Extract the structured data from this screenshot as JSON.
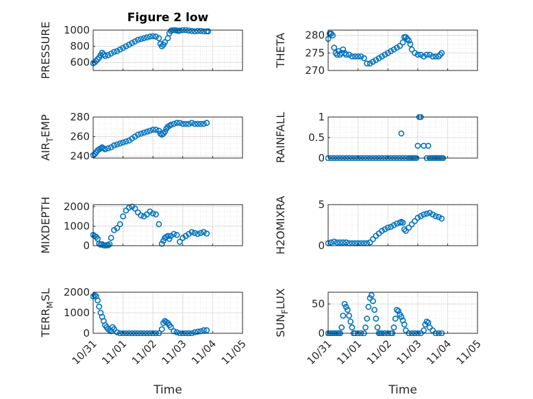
{
  "figure": {
    "title": "Figure 2 low",
    "x_axis_label": "Time",
    "x_tick_labels": [
      "10/31",
      "11/01",
      "11/02",
      "11/03",
      "11/04",
      "11/05"
    ],
    "marker_color": "#0072BD"
  },
  "chart_data": [
    {
      "type": "scatter",
      "ylabel": "PRESSURE",
      "xlim": [
        0,
        5
      ],
      "ylim": [
        500,
        1000
      ],
      "yticks": [
        600,
        800,
        1000
      ],
      "ytick_labels": [
        "600",
        "800",
        "1000"
      ],
      "grid": true,
      "series": [
        {
          "x": [
            0.0,
            0.05,
            0.1,
            0.15,
            0.2,
            0.25,
            0.3,
            0.35,
            0.4,
            0.5,
            0.6,
            0.7,
            0.8,
            0.9,
            1.0,
            1.1,
            1.2,
            1.3,
            1.4,
            1.5,
            1.6,
            1.7,
            1.8,
            1.9,
            2.0,
            2.1,
            2.2,
            2.25,
            2.3,
            2.35,
            2.4,
            2.5,
            2.55,
            2.6,
            2.65,
            2.7,
            2.75,
            2.8,
            2.85,
            2.9,
            3.0,
            3.1,
            3.2,
            3.3,
            3.4,
            3.5,
            3.6,
            3.7,
            3.8,
            3.85
          ],
          "y": [
            590,
            600,
            620,
            640,
            660,
            690,
            720,
            700,
            680,
            690,
            710,
            730,
            740,
            760,
            780,
            800,
            820,
            840,
            860,
            880,
            890,
            900,
            910,
            920,
            925,
            920,
            900,
            830,
            800,
            820,
            850,
            900,
            960,
            990,
            1000,
            1000,
            1000,
            995,
            990,
            995,
            1000,
            1000,
            995,
            990,
            985,
            990,
            990,
            985,
            985,
            985
          ]
        }
      ]
    },
    {
      "type": "scatter",
      "ylabel": "THETA",
      "xlim": [
        0,
        5
      ],
      "ylim": [
        270,
        281.5
      ],
      "yticks": [
        270,
        275,
        280
      ],
      "ytick_labels": [
        "270",
        "275",
        "280"
      ],
      "grid": true,
      "series": [
        {
          "x": [
            0.0,
            0.05,
            0.1,
            0.15,
            0.2,
            0.25,
            0.3,
            0.35,
            0.4,
            0.45,
            0.5,
            0.55,
            0.6,
            0.7,
            0.8,
            0.9,
            1.0,
            1.1,
            1.2,
            1.3,
            1.4,
            1.5,
            1.6,
            1.7,
            1.8,
            1.9,
            2.0,
            2.1,
            2.2,
            2.3,
            2.4,
            2.5,
            2.55,
            2.6,
            2.65,
            2.7,
            2.75,
            2.8,
            2.9,
            3.0,
            3.1,
            3.2,
            3.3,
            3.4,
            3.5,
            3.6,
            3.7,
            3.75,
            3.8
          ],
          "y": [
            279,
            280.5,
            280.5,
            280,
            276.5,
            275,
            274.5,
            275.5,
            274.5,
            275,
            276,
            275,
            274.5,
            274.5,
            274,
            274,
            274,
            274,
            273.5,
            272,
            272,
            272.5,
            273,
            273.5,
            274,
            274.5,
            275,
            275.5,
            276,
            276.5,
            277,
            278,
            279.5,
            279.5,
            279,
            278.5,
            277.5,
            276,
            275,
            274.5,
            274.5,
            274,
            274.5,
            274.5,
            274,
            274,
            274,
            274.5,
            275
          ]
        }
      ]
    },
    {
      "type": "scatter",
      "ylabel": "AIR_TEMP",
      "xlim": [
        0,
        5
      ],
      "ylim": [
        238,
        280
      ],
      "yticks": [
        240,
        260,
        280
      ],
      "ytick_labels": [
        "240",
        "260",
        "280"
      ],
      "grid": true,
      "series": [
        {
          "x": [
            0.0,
            0.05,
            0.1,
            0.15,
            0.2,
            0.25,
            0.3,
            0.35,
            0.4,
            0.5,
            0.6,
            0.7,
            0.8,
            0.9,
            1.0,
            1.1,
            1.2,
            1.3,
            1.4,
            1.5,
            1.6,
            1.7,
            1.8,
            1.9,
            2.0,
            2.1,
            2.2,
            2.25,
            2.3,
            2.35,
            2.4,
            2.45,
            2.5,
            2.55,
            2.6,
            2.7,
            2.8,
            2.9,
            3.0,
            3.1,
            3.2,
            3.3,
            3.4,
            3.5,
            3.6,
            3.7,
            3.8
          ],
          "y": [
            241,
            242,
            244,
            246,
            247,
            248,
            249,
            248,
            247,
            248,
            249,
            251,
            252,
            253,
            254,
            255,
            256,
            258,
            260,
            262,
            263,
            264,
            265,
            266,
            267,
            267,
            266,
            263,
            262,
            263,
            265,
            268,
            270,
            271,
            272,
            273,
            274,
            274,
            273,
            273,
            273,
            274,
            273,
            273,
            273,
            273,
            274
          ]
        }
      ]
    },
    {
      "type": "scatter",
      "ylabel": "RAINFALL",
      "xlim": [
        0,
        5
      ],
      "ylim": [
        0,
        1
      ],
      "yticks": [
        0,
        0.5,
        1
      ],
      "ytick_labels": [
        "0",
        "0.5",
        "1"
      ],
      "grid": true,
      "series": [
        {
          "x": [
            0.0,
            0.1,
            0.2,
            0.3,
            0.4,
            0.5,
            0.6,
            0.7,
            0.8,
            0.9,
            1.0,
            1.1,
            1.2,
            1.3,
            1.4,
            1.5,
            1.6,
            1.7,
            1.8,
            1.9,
            2.0,
            2.1,
            2.2,
            2.3,
            2.4,
            2.45,
            2.5,
            2.6,
            2.7,
            2.75,
            2.8,
            2.85,
            2.9,
            2.95,
            3.0,
            3.05,
            3.1,
            3.2,
            3.3,
            3.35,
            3.4,
            3.45,
            3.5,
            3.55,
            3.6,
            3.65,
            3.7,
            3.75,
            3.8,
            3.85
          ],
          "y": [
            0,
            0,
            0,
            0,
            0,
            0,
            0,
            0,
            0,
            0,
            0,
            0,
            0,
            0,
            0,
            0,
            0,
            0,
            0,
            0,
            0,
            0,
            0,
            0,
            0,
            0.6,
            0,
            0,
            0,
            0,
            0,
            0,
            0,
            0,
            0.3,
            1,
            1,
            0.3,
            0,
            0.3,
            0,
            0,
            0,
            0,
            0,
            0,
            0,
            0,
            0,
            0
          ]
        }
      ]
    },
    {
      "type": "scatter",
      "ylabel": "MIXDEPTH",
      "xlim": [
        0,
        5
      ],
      "ylim": [
        0,
        2100
      ],
      "yticks": [
        0,
        1000,
        2000
      ],
      "ytick_labels": [
        "0",
        "1000",
        "2000"
      ],
      "grid": true,
      "series": [
        {
          "x": [
            0.0,
            0.05,
            0.1,
            0.15,
            0.2,
            0.25,
            0.3,
            0.35,
            0.4,
            0.45,
            0.5,
            0.55,
            0.6,
            0.7,
            0.8,
            0.9,
            1.0,
            1.1,
            1.2,
            1.3,
            1.4,
            1.5,
            1.6,
            1.7,
            1.8,
            1.9,
            2.0,
            2.1,
            2.2,
            2.3,
            2.35,
            2.4,
            2.45,
            2.5,
            2.55,
            2.6,
            2.7,
            2.8,
            2.9,
            3.0,
            3.1,
            3.2,
            3.3,
            3.4,
            3.5,
            3.6,
            3.7,
            3.8
          ],
          "y": [
            550,
            500,
            450,
            350,
            100,
            50,
            80,
            20,
            0,
            30,
            20,
            80,
            400,
            800,
            900,
            1100,
            1500,
            1800,
            1950,
            2000,
            1900,
            1700,
            1550,
            1500,
            1600,
            1750,
            1650,
            1600,
            1100,
            100,
            250,
            400,
            450,
            500,
            350,
            500,
            600,
            550,
            200,
            400,
            500,
            600,
            700,
            650,
            600,
            650,
            700,
            620
          ]
        }
      ]
    },
    {
      "type": "scatter",
      "ylabel": "H2OMIXRA",
      "xlim": [
        0,
        5
      ],
      "ylim": [
        0,
        5
      ],
      "yticks": [
        0,
        5
      ],
      "ytick_labels": [
        "0",
        "5"
      ],
      "grid": true,
      "series": [
        {
          "x": [
            0.0,
            0.1,
            0.2,
            0.3,
            0.4,
            0.5,
            0.6,
            0.7,
            0.8,
            0.9,
            1.0,
            1.1,
            1.2,
            1.3,
            1.4,
            1.5,
            1.6,
            1.7,
            1.8,
            1.9,
            2.0,
            2.1,
            2.2,
            2.3,
            2.4,
            2.45,
            2.5,
            2.55,
            2.6,
            2.7,
            2.8,
            2.9,
            3.0,
            3.1,
            3.2,
            3.3,
            3.4,
            3.5,
            3.6,
            3.7,
            3.8
          ],
          "y": [
            0.3,
            0.4,
            0.5,
            0.4,
            0.4,
            0.4,
            0.4,
            0.3,
            0.3,
            0.3,
            0.3,
            0.3,
            0.3,
            0.3,
            0.4,
            0.8,
            1.2,
            1.5,
            1.8,
            2.0,
            2.2,
            2.3,
            2.5,
            2.7,
            2.8,
            2.9,
            2.8,
            2.0,
            1.8,
            2.2,
            2.6,
            3.0,
            3.4,
            3.6,
            3.8,
            3.9,
            4.0,
            3.8,
            3.6,
            3.5,
            3.3
          ]
        }
      ]
    },
    {
      "type": "scatter",
      "ylabel": "TERR_MSL",
      "xlim": [
        0,
        5
      ],
      "ylim": [
        0,
        2000
      ],
      "yticks": [
        0,
        1000,
        2000
      ],
      "ytick_labels": [
        "0",
        "1000",
        "2000"
      ],
      "grid": true,
      "series": [
        {
          "x": [
            0.0,
            0.05,
            0.1,
            0.15,
            0.2,
            0.25,
            0.3,
            0.35,
            0.4,
            0.45,
            0.5,
            0.55,
            0.6,
            0.65,
            0.7,
            0.8,
            0.9,
            1.0,
            1.1,
            1.2,
            1.3,
            1.4,
            1.5,
            1.6,
            1.7,
            1.8,
            1.9,
            2.0,
            2.1,
            2.2,
            2.3,
            2.35,
            2.4,
            2.45,
            2.5,
            2.55,
            2.6,
            2.7,
            2.8,
            2.9,
            3.0,
            3.1,
            3.2,
            3.3,
            3.4,
            3.5,
            3.6,
            3.7,
            3.8
          ],
          "y": [
            1800,
            1850,
            1800,
            1600,
            1300,
            1000,
            800,
            600,
            400,
            300,
            200,
            150,
            100,
            300,
            200,
            50,
            0,
            0,
            0,
            0,
            0,
            0,
            0,
            0,
            0,
            0,
            0,
            0,
            0,
            0,
            200,
            500,
            600,
            550,
            500,
            400,
            300,
            100,
            50,
            0,
            0,
            0,
            0,
            0,
            50,
            80,
            100,
            150,
            150
          ]
        }
      ]
    },
    {
      "type": "scatter",
      "ylabel": "SUN_FLUX",
      "xlim": [
        0,
        5
      ],
      "ylim": [
        0,
        70
      ],
      "yticks": [
        0,
        50
      ],
      "ytick_labels": [
        "0",
        "50"
      ],
      "grid": true,
      "series": [
        {
          "x": [
            0.0,
            0.05,
            0.1,
            0.15,
            0.2,
            0.25,
            0.3,
            0.35,
            0.4,
            0.45,
            0.5,
            0.55,
            0.6,
            0.65,
            0.7,
            0.75,
            0.8,
            0.85,
            0.9,
            1.0,
            1.1,
            1.2,
            1.25,
            1.3,
            1.35,
            1.4,
            1.45,
            1.5,
            1.55,
            1.6,
            1.65,
            1.7,
            1.75,
            1.8,
            1.9,
            2.0,
            2.1,
            2.15,
            2.2,
            2.25,
            2.3,
            2.35,
            2.4,
            2.45,
            2.5,
            2.55,
            2.6,
            2.7,
            2.8,
            2.9,
            3.0,
            3.1,
            3.2,
            3.25,
            3.3,
            3.35,
            3.4,
            3.5,
            3.6,
            3.7,
            3.8
          ],
          "y": [
            0,
            0,
            0,
            0,
            0,
            0,
            0,
            0,
            0,
            10,
            30,
            50,
            45,
            40,
            30,
            20,
            10,
            0,
            0,
            0,
            0,
            0,
            10,
            25,
            45,
            60,
            65,
            55,
            40,
            25,
            10,
            0,
            0,
            0,
            0,
            0,
            0,
            0,
            10,
            25,
            40,
            38,
            32,
            28,
            22,
            15,
            5,
            0,
            0,
            0,
            0,
            0,
            5,
            15,
            20,
            18,
            10,
            5,
            0,
            0,
            0
          ]
        }
      ]
    }
  ]
}
